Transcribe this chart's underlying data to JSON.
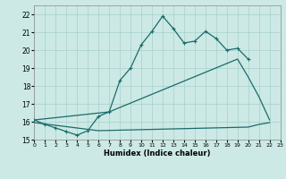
{
  "xlabel": "Humidex (Indice chaleur)",
  "bg_color": "#cce9e5",
  "grid_color": "#a8d0cc",
  "line_color": "#1a6b6b",
  "xlim": [
    0,
    23
  ],
  "ylim": [
    15,
    22.5
  ],
  "yticks": [
    15,
    16,
    17,
    18,
    19,
    20,
    21,
    22
  ],
  "xticks": [
    0,
    1,
    2,
    3,
    4,
    5,
    6,
    7,
    8,
    9,
    10,
    11,
    12,
    13,
    14,
    15,
    16,
    17,
    18,
    19,
    20,
    21,
    22,
    23
  ],
  "curve_x": [
    0,
    1,
    2,
    3,
    4,
    5,
    6,
    7,
    8,
    9,
    10,
    11,
    12,
    13,
    14,
    15,
    16,
    17,
    18,
    19,
    20
  ],
  "curve_y": [
    16.1,
    15.85,
    15.65,
    15.45,
    15.25,
    15.5,
    16.3,
    16.55,
    18.3,
    19.0,
    20.3,
    21.05,
    21.9,
    21.2,
    20.4,
    20.5,
    21.05,
    20.65,
    20.0,
    20.1,
    19.5
  ],
  "line2_x": [
    0,
    7,
    19,
    20,
    21,
    22
  ],
  "line2_y": [
    16.1,
    16.55,
    19.5,
    18.5,
    17.4,
    16.1
  ],
  "line3_x": [
    0,
    6,
    20,
    21,
    22
  ],
  "line3_y": [
    15.95,
    15.5,
    15.7,
    15.85,
    15.95
  ]
}
